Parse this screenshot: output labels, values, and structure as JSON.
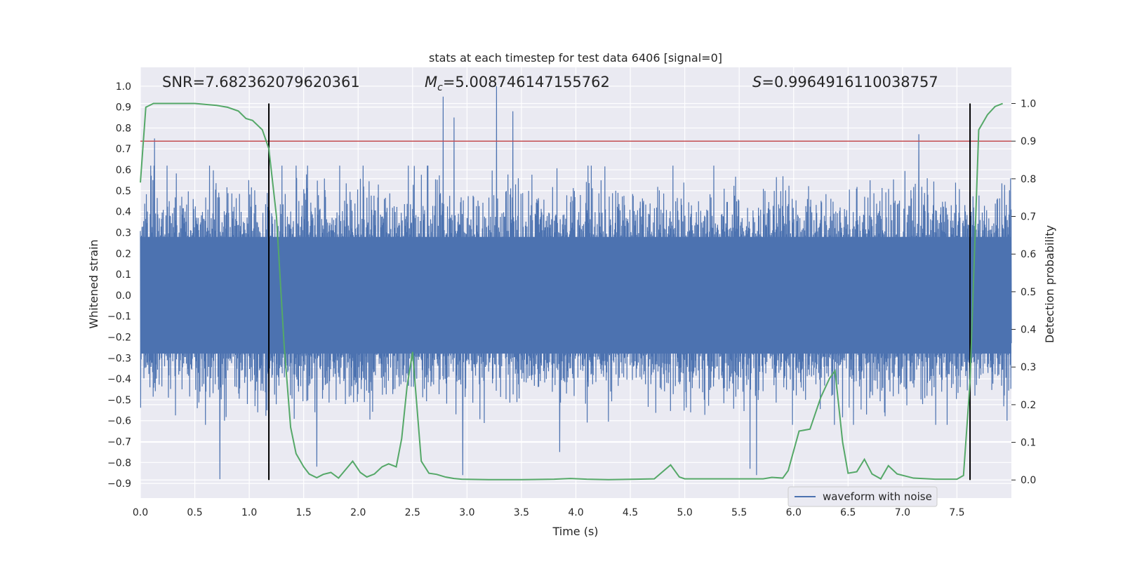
{
  "chart_data": {
    "type": "line",
    "title": "stats at each timestep for test data 6406 [signal=0]",
    "xlabel": "Time (s)",
    "ylabel_left": "Whitened strain",
    "ylabel_right": "Detection probability",
    "xlim": [
      0.0,
      8.0
    ],
    "ylim_left": [
      -0.97,
      1.09
    ],
    "ylim_right": [
      -0.048,
      1.096
    ],
    "x_ticks": [
      "0.0",
      "0.5",
      "1.0",
      "1.5",
      "2.0",
      "2.5",
      "3.0",
      "3.5",
      "4.0",
      "4.5",
      "5.0",
      "5.5",
      "6.0",
      "6.5",
      "7.0",
      "7.5"
    ],
    "y_ticks_left": [
      "1.0",
      "0.9",
      "0.8",
      "0.7",
      "0.6",
      "0.5",
      "0.4",
      "0.3",
      "0.2",
      "0.1",
      "0.0",
      "−0.1",
      "−0.2",
      "−0.3",
      "−0.4",
      "−0.5",
      "−0.6",
      "−0.7",
      "−0.8",
      "−0.9"
    ],
    "y_ticks_right": [
      "1.0",
      "0.9",
      "0.8",
      "0.7",
      "0.6",
      "0.5",
      "0.4",
      "0.3",
      "0.2",
      "0.1",
      "0.0"
    ],
    "annotations": {
      "snr": "SNR=7.682362079620361",
      "mc_symbol": "M",
      "mc_sub": "c",
      "mc_value": "=5.008746147155762",
      "s_symbol": "S",
      "s_value": "=0.9964916110038757"
    },
    "legend": {
      "label": "waveform with noise",
      "placement": "lower right"
    },
    "grid": true,
    "colors": {
      "background": "#eaeaf2",
      "grid": "#ffffff",
      "waveform": "#4c72b0",
      "probability": "#55a868",
      "threshold": "#c44e52",
      "markers": "#000000"
    },
    "threshold_right": 0.9,
    "vertical_markers_x": [
      1.18,
      7.62
    ],
    "waveform": {
      "name": "waveform with noise",
      "sample_count": 3200,
      "typical_envelope": [
        -0.45,
        0.45
      ],
      "peaks": [
        {
          "x": 0.13,
          "y": 0.75
        },
        {
          "x": 0.73,
          "y": -0.88
        },
        {
          "x": 2.78,
          "y": 0.95
        },
        {
          "x": 2.88,
          "y": 0.85
        },
        {
          "x": 3.27,
          "y": 1.0
        },
        {
          "x": 3.42,
          "y": 0.88
        },
        {
          "x": 2.96,
          "y": -0.86
        },
        {
          "x": 5.6,
          "y": -0.83
        },
        {
          "x": 5.66,
          "y": -0.86
        },
        {
          "x": 7.15,
          "y": 0.77
        },
        {
          "x": 3.85,
          "y": -0.75
        },
        {
          "x": 1.62,
          "y": -0.82
        }
      ]
    },
    "probability": {
      "name": "Detection probability",
      "x": [
        0.0,
        0.05,
        0.12,
        0.3,
        0.5,
        0.7,
        0.8,
        0.9,
        0.97,
        1.03,
        1.12,
        1.18,
        1.25,
        1.32,
        1.38,
        1.43,
        1.5,
        1.55,
        1.62,
        1.68,
        1.75,
        1.82,
        1.95,
        2.02,
        2.08,
        2.15,
        2.22,
        2.28,
        2.35,
        2.4,
        2.45,
        2.5,
        2.58,
        2.65,
        2.72,
        2.8,
        2.88,
        2.95,
        3.2,
        3.5,
        3.8,
        3.95,
        4.1,
        4.3,
        4.55,
        4.72,
        4.87,
        4.95,
        5.0,
        5.2,
        5.4,
        5.6,
        5.72,
        5.8,
        5.9,
        5.95,
        6.05,
        6.15,
        6.25,
        6.33,
        6.38,
        6.45,
        6.5,
        6.58,
        6.65,
        6.72,
        6.8,
        6.87,
        6.95,
        7.1,
        7.3,
        7.5,
        7.56,
        7.62,
        7.7,
        7.78,
        7.85,
        7.92
      ],
      "y": [
        0.79,
        0.99,
        1.0,
        1.0,
        1.0,
        0.995,
        0.99,
        0.98,
        0.96,
        0.955,
        0.93,
        0.88,
        0.7,
        0.36,
        0.14,
        0.07,
        0.035,
        0.016,
        0.006,
        0.015,
        0.02,
        0.005,
        0.05,
        0.02,
        0.008,
        0.016,
        0.035,
        0.043,
        0.035,
        0.11,
        0.25,
        0.34,
        0.05,
        0.018,
        0.015,
        0.008,
        0.004,
        0.002,
        0.001,
        0.001,
        0.002,
        0.004,
        0.002,
        0.001,
        0.002,
        0.003,
        0.04,
        0.008,
        0.003,
        0.003,
        0.003,
        0.003,
        0.003,
        0.007,
        0.005,
        0.025,
        0.13,
        0.135,
        0.22,
        0.27,
        0.29,
        0.1,
        0.018,
        0.022,
        0.055,
        0.016,
        0.003,
        0.038,
        0.016,
        0.005,
        0.002,
        0.002,
        0.012,
        0.26,
        0.93,
        0.97,
        0.992,
        1.0
      ]
    }
  }
}
